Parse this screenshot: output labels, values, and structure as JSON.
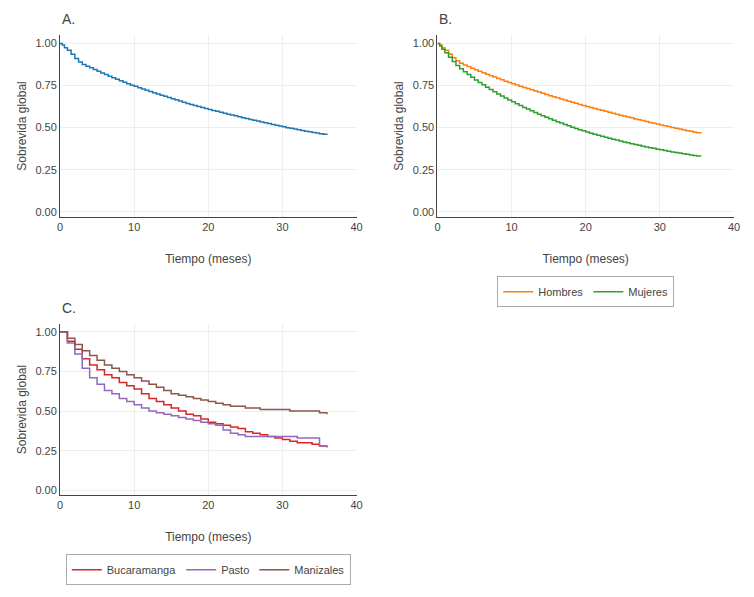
{
  "chart_data": [
    {
      "type": "step",
      "title": "A.",
      "xlabel": "Tiempo (meses)",
      "ylabel": "Sobrevida global",
      "xlim": [
        0,
        40
      ],
      "ylim": [
        -0.03,
        1.05
      ],
      "xticks": [
        0,
        10,
        20,
        30,
        40
      ],
      "yticks": [
        {
          "value": 0.0,
          "label": "0.00"
        },
        {
          "value": 0.25,
          "label": "0.25"
        },
        {
          "value": 0.5,
          "label": "0.50"
        },
        {
          "value": 0.75,
          "label": "0.75"
        },
        {
          "value": 1.0,
          "label": "1.00"
        }
      ],
      "grid": true,
      "x": [
        0,
        0.3,
        0.6,
        1,
        1.5,
        2,
        2.5,
        3,
        3.5,
        4,
        4.5,
        5,
        5.5,
        6,
        6.5,
        7,
        7.5,
        8,
        8.5,
        9,
        9.5,
        10,
        10.5,
        11,
        11.5,
        12,
        12.5,
        13,
        13.5,
        14,
        14.5,
        15,
        15.5,
        16,
        16.5,
        17,
        17.5,
        18,
        18.5,
        19,
        19.5,
        20,
        20.5,
        21,
        21.5,
        22,
        22.5,
        23,
        23.5,
        24,
        24.5,
        25,
        25.5,
        26,
        26.5,
        27,
        27.5,
        28,
        28.5,
        29,
        29.5,
        30,
        30.5,
        31,
        31.5,
        32,
        32.5,
        33,
        33.5,
        34,
        34.5,
        35,
        35.5,
        36
      ],
      "values": [
        1.0,
        0.99,
        0.975,
        0.96,
        0.935,
        0.91,
        0.89,
        0.875,
        0.865,
        0.855,
        0.845,
        0.835,
        0.825,
        0.815,
        0.805,
        0.796,
        0.787,
        0.778,
        0.769,
        0.76,
        0.752,
        0.745,
        0.737,
        0.729,
        0.722,
        0.715,
        0.707,
        0.7,
        0.693,
        0.686,
        0.679,
        0.672,
        0.665,
        0.658,
        0.651,
        0.644,
        0.638,
        0.632,
        0.625,
        0.619,
        0.613,
        0.608,
        0.602,
        0.597,
        0.591,
        0.586,
        0.58,
        0.575,
        0.57,
        0.565,
        0.559,
        0.554,
        0.549,
        0.544,
        0.539,
        0.534,
        0.529,
        0.524,
        0.519,
        0.514,
        0.51,
        0.505,
        0.5,
        0.496,
        0.492,
        0.487,
        0.483,
        0.479,
        0.475,
        0.471,
        0.468,
        0.464,
        0.46,
        0.456
      ]
    },
    {
      "type": "step",
      "title": "B.",
      "xlabel": "Tiempo (meses)",
      "ylabel": "Sobrevida global",
      "xlim": [
        0,
        40
      ],
      "ylim": [
        -0.03,
        1.05
      ],
      "xticks": [
        0,
        10,
        20,
        30,
        40
      ],
      "yticks": [
        {
          "value": 0.0,
          "label": "0.00"
        },
        {
          "value": 0.25,
          "label": "0.25"
        },
        {
          "value": 0.5,
          "label": "0.50"
        },
        {
          "value": 0.75,
          "label": "0.75"
        },
        {
          "value": 1.0,
          "label": "1.00"
        }
      ],
      "grid": true,
      "legend": "bottom",
      "x": [
        0,
        0.3,
        0.6,
        1,
        1.5,
        2,
        2.5,
        3,
        3.5,
        4,
        4.5,
        5,
        5.5,
        6,
        6.5,
        7,
        7.5,
        8,
        8.5,
        9,
        9.5,
        10,
        10.5,
        11,
        11.5,
        12,
        12.5,
        13,
        13.5,
        14,
        14.5,
        15,
        15.5,
        16,
        16.5,
        17,
        17.5,
        18,
        18.5,
        19,
        19.5,
        20,
        20.5,
        21,
        21.5,
        22,
        22.5,
        23,
        23.5,
        24,
        24.5,
        25,
        25.5,
        26,
        26.5,
        27,
        27.5,
        28,
        28.5,
        29,
        29.5,
        30,
        30.5,
        31,
        31.5,
        32,
        32.5,
        33,
        33.5,
        34,
        34.5,
        35,
        35.5
      ],
      "series": [
        {
          "name": "Hombres",
          "values": [
            1.0,
            0.99,
            0.975,
            0.96,
            0.935,
            0.915,
            0.897,
            0.882,
            0.872,
            0.863,
            0.853,
            0.844,
            0.835,
            0.826,
            0.817,
            0.808,
            0.8,
            0.792,
            0.784,
            0.776,
            0.768,
            0.761,
            0.753,
            0.746,
            0.739,
            0.732,
            0.725,
            0.718,
            0.711,
            0.704,
            0.697,
            0.69,
            0.683,
            0.677,
            0.67,
            0.664,
            0.657,
            0.651,
            0.645,
            0.638,
            0.632,
            0.626,
            0.62,
            0.614,
            0.608,
            0.603,
            0.597,
            0.591,
            0.585,
            0.58,
            0.574,
            0.569,
            0.563,
            0.558,
            0.552,
            0.547,
            0.542,
            0.536,
            0.531,
            0.526,
            0.521,
            0.516,
            0.511,
            0.506,
            0.501,
            0.496,
            0.492,
            0.487,
            0.482,
            0.478,
            0.473,
            0.469,
            0.464
          ]
        },
        {
          "name": "Mujeres",
          "values": [
            1.0,
            0.985,
            0.965,
            0.945,
            0.918,
            0.892,
            0.869,
            0.849,
            0.832,
            0.815,
            0.799,
            0.783,
            0.768,
            0.754,
            0.74,
            0.726,
            0.713,
            0.7,
            0.688,
            0.676,
            0.664,
            0.653,
            0.642,
            0.631,
            0.62,
            0.61,
            0.6,
            0.59,
            0.58,
            0.571,
            0.562,
            0.553,
            0.544,
            0.535,
            0.527,
            0.519,
            0.511,
            0.503,
            0.495,
            0.488,
            0.481,
            0.474,
            0.467,
            0.461,
            0.455,
            0.449,
            0.443,
            0.437,
            0.431,
            0.426,
            0.42,
            0.415,
            0.41,
            0.405,
            0.4,
            0.395,
            0.39,
            0.385,
            0.381,
            0.377,
            0.372,
            0.368,
            0.364,
            0.36,
            0.356,
            0.352,
            0.349,
            0.345,
            0.342,
            0.338,
            0.335,
            0.332,
            0.328
          ]
        }
      ]
    },
    {
      "type": "step",
      "title": "C.",
      "xlabel": "Tiempo (meses)",
      "ylabel": "Sobrevida global",
      "xlim": [
        0,
        40
      ],
      "ylim": [
        -0.03,
        1.05
      ],
      "xticks": [
        0,
        10,
        20,
        30,
        40
      ],
      "yticks": [
        {
          "value": 0.0,
          "label": "0.00"
        },
        {
          "value": 0.25,
          "label": "0.25"
        },
        {
          "value": 0.5,
          "label": "0.50"
        },
        {
          "value": 0.75,
          "label": "0.75"
        },
        {
          "value": 1.0,
          "label": "1.00"
        }
      ],
      "grid": true,
      "legend": "bottom",
      "x": [
        0,
        1,
        2,
        3,
        4,
        5,
        6,
        7,
        8,
        9,
        10,
        11,
        12,
        13,
        14,
        15,
        16,
        17,
        18,
        19,
        20,
        21,
        22,
        23,
        24,
        25,
        26,
        27,
        28,
        29,
        30,
        31,
        32,
        33,
        34,
        35,
        36
      ],
      "series": [
        {
          "name": "Bucaramanga",
          "values": [
            1.0,
            0.94,
            0.89,
            0.83,
            0.79,
            0.76,
            0.73,
            0.71,
            0.68,
            0.66,
            0.64,
            0.61,
            0.58,
            0.56,
            0.54,
            0.52,
            0.5,
            0.48,
            0.47,
            0.45,
            0.43,
            0.42,
            0.41,
            0.4,
            0.39,
            0.37,
            0.36,
            0.35,
            0.34,
            0.33,
            0.32,
            0.31,
            0.3,
            0.3,
            0.29,
            0.28,
            0.27
          ]
        },
        {
          "name": "Pasto",
          "values": [
            1.0,
            0.93,
            0.86,
            0.77,
            0.71,
            0.67,
            0.63,
            0.61,
            0.58,
            0.56,
            0.54,
            0.52,
            0.5,
            0.49,
            0.48,
            0.47,
            0.46,
            0.45,
            0.44,
            0.43,
            0.42,
            0.41,
            0.38,
            0.36,
            0.35,
            0.34,
            0.34,
            0.34,
            0.34,
            0.34,
            0.34,
            0.34,
            0.33,
            0.33,
            0.33,
            0.28,
            0.28
          ]
        },
        {
          "name": "Manizales",
          "values": [
            1.0,
            0.96,
            0.92,
            0.88,
            0.85,
            0.82,
            0.79,
            0.77,
            0.75,
            0.73,
            0.71,
            0.69,
            0.67,
            0.65,
            0.63,
            0.61,
            0.6,
            0.59,
            0.58,
            0.57,
            0.56,
            0.55,
            0.54,
            0.53,
            0.53,
            0.52,
            0.52,
            0.51,
            0.51,
            0.51,
            0.51,
            0.5,
            0.5,
            0.5,
            0.5,
            0.49,
            0.48
          ]
        }
      ]
    }
  ]
}
